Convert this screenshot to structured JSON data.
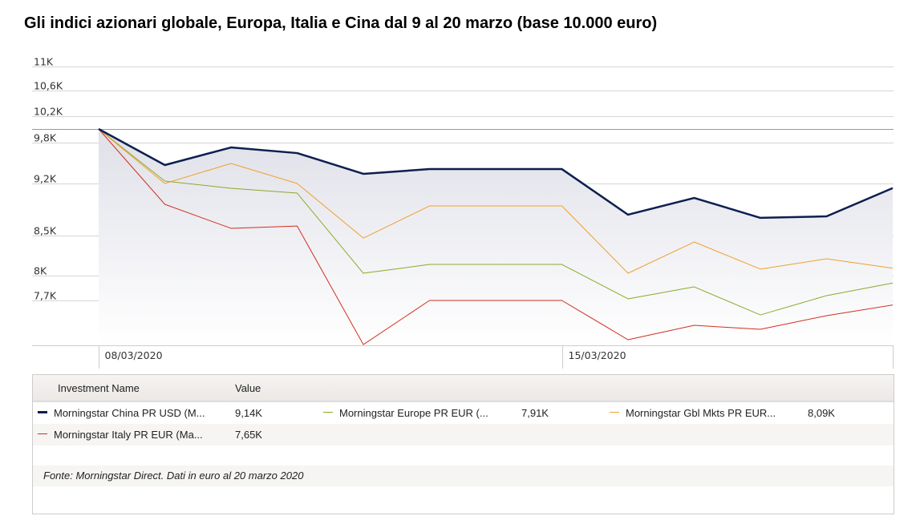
{
  "title": "Gli indici azionari globale, Europa, Italia e Cina dal 9 al 20 marzo (base 10.000 euro)",
  "chart_data": {
    "type": "line",
    "title": "Gli indici azionari globale, Europa, Italia e Cina dal 9 al 20 marzo (base 10.000 euro)",
    "y_scale": "log",
    "ylim": [
      7200,
      11000
    ],
    "yticks": [
      11000,
      10600,
      10200,
      9800,
      9200,
      8500,
      8000,
      7700
    ],
    "ytick_labels": [
      "11K",
      "10,6K",
      "10,2K",
      "9,8K",
      "9,2K",
      "8,5K",
      "8K",
      "7,7K"
    ],
    "baseline": 10000,
    "x": [
      "08/03/2020",
      "09/03/2020",
      "10/03/2020",
      "11/03/2020",
      "12/03/2020",
      "13/03/2020",
      "14/03/2020",
      "15/03/2020",
      "16/03/2020",
      "17/03/2020",
      "18/03/2020",
      "19/03/2020",
      "20/03/2020"
    ],
    "xtick_labels": [
      {
        "index": 0,
        "label": "08/03/2020"
      },
      {
        "index": 7,
        "label": "15/03/2020"
      }
    ],
    "grid": true,
    "legend_position": "bottom",
    "series": [
      {
        "name": "Morningstar China PR USD (M...",
        "last": "9,14K",
        "color": "#0d1f4f",
        "width": 2.5,
        "values": [
          10000,
          9466,
          9723,
          9640,
          9340,
          9408,
          9408,
          9408,
          8777,
          9004,
          8735,
          8755,
          9140
        ]
      },
      {
        "name": "Morningstar Europe PR EUR (...",
        "last": "7,91K",
        "color": "#8aaa2a",
        "width": 1,
        "values": [
          10000,
          9238,
          9137,
          9070,
          8029,
          8137,
          8137,
          8137,
          7722,
          7864,
          7535,
          7760,
          7910
        ]
      },
      {
        "name": "Morningstar Gbl Mkts PR EUR...",
        "last": "8,09K",
        "color": "#f0a030",
        "width": 1,
        "values": [
          10000,
          9204,
          9489,
          9204,
          8470,
          8895,
          8895,
          8895,
          8029,
          8420,
          8080,
          8207,
          8090
        ]
      },
      {
        "name": "Morningstar Italy PR EUR (Ma...",
        "last": "7,65K",
        "color": "#d03020",
        "width": 1,
        "values": [
          10000,
          8917,
          8597,
          8627,
          7203,
          7703,
          7703,
          7703,
          7256,
          7417,
          7372,
          7527,
          7650
        ]
      }
    ]
  },
  "legend": {
    "col_name": "Investment Name",
    "col_value": "Value",
    "source": "Fonte: Morningstar Direct. Dati in euro al 20 marzo 2020"
  }
}
